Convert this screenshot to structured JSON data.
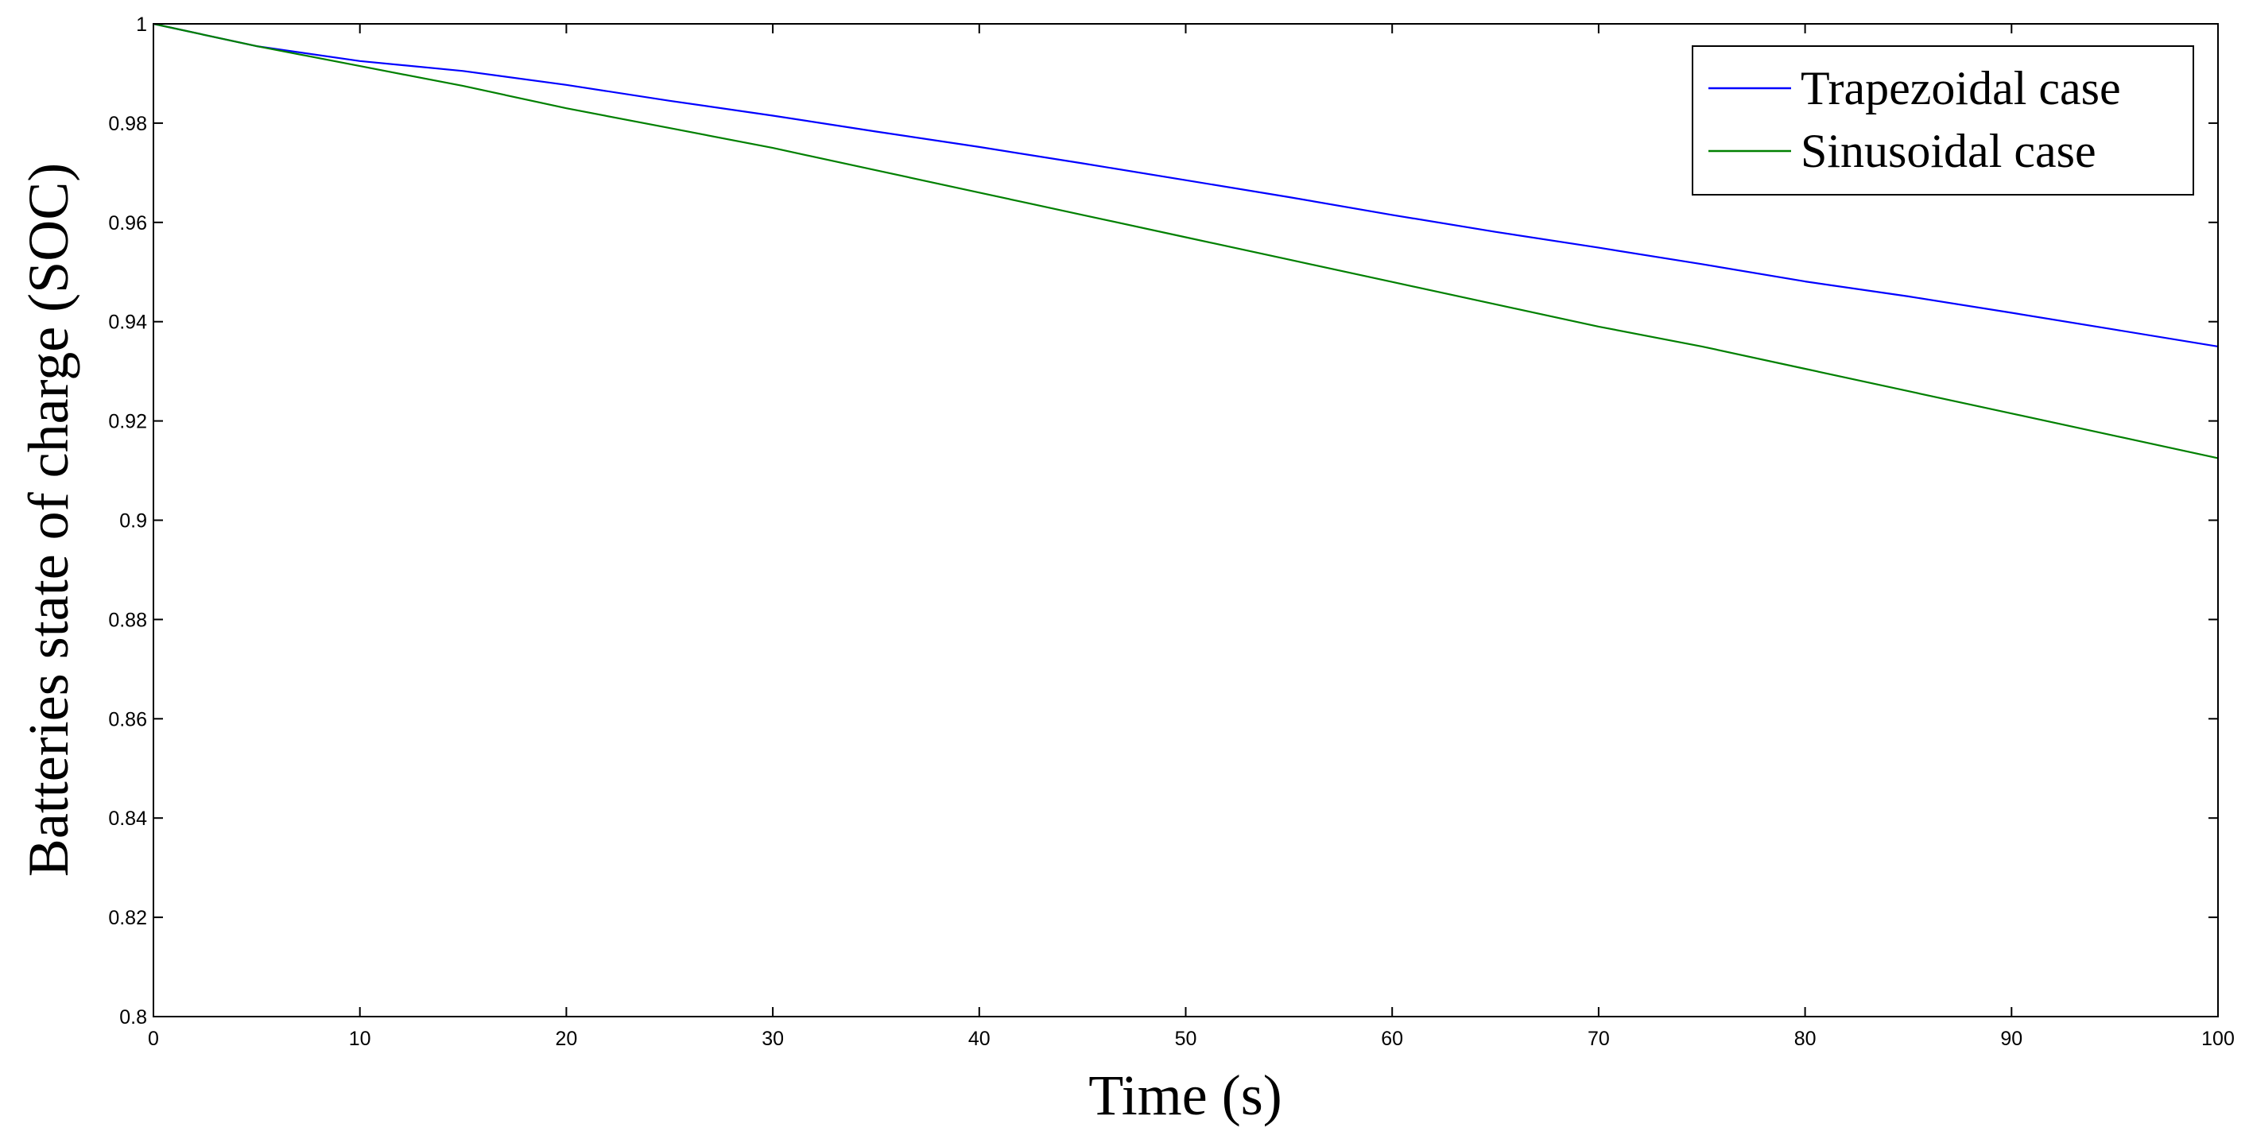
{
  "chart_data": {
    "type": "line",
    "title": "",
    "xlabel": "Time (s)",
    "ylabel": "Batteries state of charge (SOC)",
    "xlim": [
      0,
      100
    ],
    "ylim": [
      0.8,
      1
    ],
    "x_ticks": [
      0,
      10,
      20,
      30,
      40,
      50,
      60,
      70,
      80,
      90,
      100
    ],
    "y_ticks": [
      0.8,
      0.82,
      0.84,
      0.86,
      0.88,
      0.9,
      0.92,
      0.94,
      0.96,
      0.98,
      1
    ],
    "x_tick_labels": [
      "0",
      "10",
      "20",
      "30",
      "40",
      "50",
      "60",
      "70",
      "80",
      "90",
      "100"
    ],
    "y_tick_labels": [
      "0.8",
      "0.82",
      "0.84",
      "0.86",
      "0.88",
      "0.9",
      "0.92",
      "0.94",
      "0.96",
      "0.98",
      "1"
    ],
    "grid": false,
    "legend_position": "top-right",
    "series": [
      {
        "name": "Trapezoidal case",
        "color": "#0000ff",
        "x": [
          0,
          5,
          10,
          15,
          20,
          25,
          30,
          35,
          40,
          45,
          50,
          55,
          60,
          65,
          70,
          75,
          80,
          85,
          90,
          95,
          100
        ],
        "y": [
          1.0,
          0.9955,
          0.9925,
          0.9905,
          0.9877,
          0.9845,
          0.9815,
          0.9783,
          0.9752,
          0.9719,
          0.9685,
          0.9651,
          0.9615,
          0.9581,
          0.9549,
          0.9516,
          0.9481,
          0.9451,
          0.9418,
          0.9384,
          0.935
        ]
      },
      {
        "name": "Sinusoidal case",
        "color": "#008000",
        "x": [
          0,
          5,
          10,
          15,
          20,
          25,
          30,
          35,
          40,
          45,
          50,
          55,
          60,
          65,
          70,
          75,
          80,
          85,
          90,
          95,
          100
        ],
        "y": [
          1.0,
          0.9955,
          0.9915,
          0.9875,
          0.983,
          0.979,
          0.975,
          0.9705,
          0.966,
          0.9615,
          0.957,
          0.9525,
          0.948,
          0.9435,
          0.939,
          0.935,
          0.9305,
          0.926,
          0.9215,
          0.917,
          0.9125
        ]
      }
    ]
  }
}
